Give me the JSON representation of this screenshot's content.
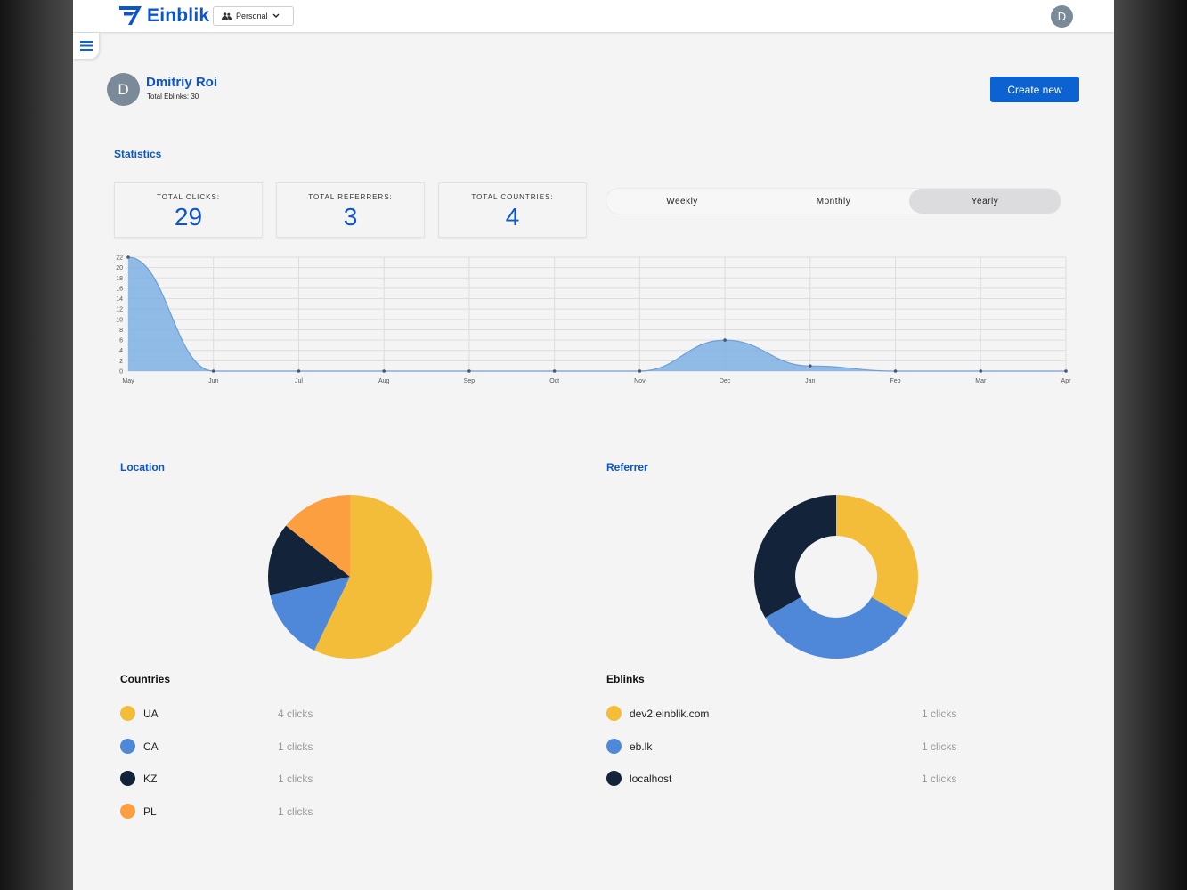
{
  "header": {
    "brand": "Einblik",
    "workspace": "Personal",
    "avatar_initial": "D"
  },
  "profile": {
    "initial": "D",
    "name": "Dmitriy Roi",
    "total_eblinks": "Total Eblinks: 30"
  },
  "actions": {
    "create_new": "Create new"
  },
  "statistics": {
    "title": "Statistics",
    "cards": [
      {
        "label": "TOTAL CLICKS:",
        "value": "29"
      },
      {
        "label": "TOTAL REFERRERS:",
        "value": "3"
      },
      {
        "label": "TOTAL COUNTRIES:",
        "value": "4"
      }
    ],
    "periods": [
      "Weekly",
      "Monthly",
      "Yearly"
    ],
    "active_period": "Yearly"
  },
  "chart_data": [
    {
      "type": "area",
      "title": "",
      "categories": [
        "May",
        "Jun",
        "Jul",
        "Aug",
        "Sep",
        "Oct",
        "Nov",
        "Dec",
        "Jan",
        "Feb",
        "Mar",
        "Apr"
      ],
      "values": [
        22,
        0,
        0,
        0,
        0,
        0,
        0,
        6,
        1,
        0,
        0,
        0
      ],
      "ylim": [
        0,
        22
      ],
      "yticks": [
        "0",
        "2",
        "4",
        "6",
        "8",
        "10",
        "12",
        "14",
        "16",
        "18",
        "20",
        "22"
      ],
      "grid": true,
      "color": "#7fb0e4"
    },
    {
      "type": "pie",
      "title": "Location",
      "labels": [
        "UA",
        "CA",
        "KZ",
        "PL"
      ],
      "values": [
        4,
        1,
        1,
        1
      ],
      "colors": [
        "#f3bd39",
        "#4f88d9",
        "#13233a",
        "#fb9f40"
      ]
    },
    {
      "type": "pie",
      "variant": "doughnut",
      "title": "Referrer",
      "labels": [
        "dev2.einblik.com",
        "eb.lk",
        "localhost"
      ],
      "values": [
        1,
        1,
        1
      ],
      "colors": [
        "#f3bd39",
        "#4f88d9",
        "#13233a"
      ]
    }
  ],
  "location": {
    "title": "Location",
    "list_title": "Countries",
    "items": [
      {
        "name": "UA",
        "clicks": "4 clicks",
        "color": "#f3bd39"
      },
      {
        "name": "CA",
        "clicks": "1 clicks",
        "color": "#4f88d9"
      },
      {
        "name": "KZ",
        "clicks": "1 clicks",
        "color": "#13233a"
      },
      {
        "name": "PL",
        "clicks": "1 clicks",
        "color": "#fb9f40"
      }
    ]
  },
  "referrer": {
    "title": "Referrer",
    "list_title": "Eblinks",
    "items": [
      {
        "name": "dev2.einblik.com",
        "clicks": "1 clicks",
        "color": "#f3bd39"
      },
      {
        "name": "eb.lk",
        "clicks": "1 clicks",
        "color": "#4f88d9"
      },
      {
        "name": "localhost",
        "clicks": "1 clicks",
        "color": "#13233a"
      }
    ]
  }
}
